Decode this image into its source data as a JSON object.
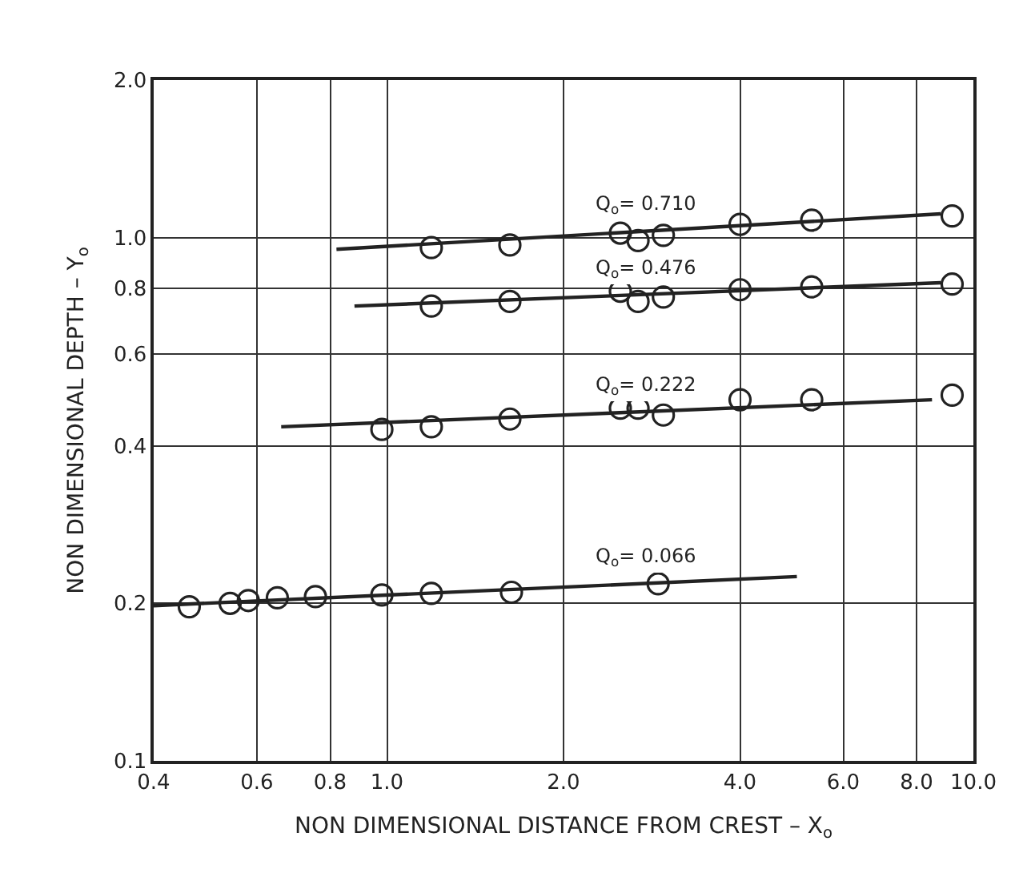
{
  "chart_data": {
    "type": "scatter",
    "xlabel": "NON DIMENSIONAL DISTANCE FROM CREST – X$_{o}$",
    "ylabel": "NON DIMENSIONAL DEPTH – Y$_{o}$",
    "log": "xy",
    "grid": true,
    "line_style": "solid",
    "xlim": [
      0.4,
      10
    ],
    "ylim": [
      0.1,
      2
    ],
    "xticks": [
      0.4,
      0.6,
      0.8,
      {
        "value": 1,
        "label": "1.0"
      },
      {
        "value": 2,
        "label": "2.0"
      },
      {
        "value": 4,
        "label": "4.0"
      },
      {
        "value": 6,
        "label": "6.0"
      },
      {
        "value": 8,
        "label": "8.0"
      },
      {
        "value": 10,
        "label": "10.0"
      }
    ],
    "yticks": [
      0.1,
      0.2,
      0.4,
      0.6,
      0.8,
      {
        "value": 1,
        "label": "1.0"
      },
      {
        "value": 2,
        "label": "2.0"
      }
    ],
    "series": [
      {
        "marker": "circle",
        "color": "#222222",
        "x": [
          1.19,
          1.62,
          2.5,
          2.68,
          2.96,
          4.0,
          5.3,
          9.2
        ],
        "values": [
          0.957,
          0.968,
          1.02,
          0.987,
          1.01,
          1.06,
          1.08,
          1.1
        ]
      },
      {
        "type": "line",
        "marker": "none",
        "color": "#222222",
        "x": [
          0.82,
          8.8
        ],
        "values": [
          0.95,
          1.11
        ]
      },
      {
        "marker": "circle",
        "color": "#222222",
        "x": [
          1.19,
          1.62,
          2.5,
          2.68,
          2.96,
          4.0,
          5.3,
          9.2
        ],
        "values": [
          0.74,
          0.755,
          0.79,
          0.755,
          0.77,
          0.795,
          0.805,
          0.815
        ]
      },
      {
        "type": "line",
        "marker": "none",
        "color": "#222222",
        "x": [
          0.88,
          8.8
        ],
        "values": [
          0.74,
          0.82
        ]
      },
      {
        "marker": "circle",
        "color": "#222222",
        "x": [
          0.98,
          1.19,
          1.62,
          2.5,
          2.68,
          2.96,
          4.0,
          5.3,
          9.2
        ],
        "values": [
          0.43,
          0.435,
          0.45,
          0.472,
          0.472,
          0.458,
          0.49,
          0.49,
          0.5
        ]
      },
      {
        "type": "line",
        "marker": "none",
        "color": "#222222",
        "x": [
          0.66,
          8.5
        ],
        "values": [
          0.435,
          0.49
        ]
      },
      {
        "marker": "circle",
        "color": "#222222",
        "x": [
          0.46,
          0.54,
          0.58,
          0.65,
          0.755,
          0.98,
          1.19,
          1.63,
          2.9
        ],
        "values": [
          0.197,
          0.2,
          0.2025,
          0.205,
          0.206,
          0.2075,
          0.209,
          0.21,
          0.218
        ]
      },
      {
        "type": "line",
        "marker": "none",
        "color": "#222222",
        "x": [
          0.4,
          5.0
        ],
        "values": [
          0.198,
          0.225
        ]
      }
    ],
    "annotations": [
      "Q$_{o}$= 0.710",
      "Q$_{o}$= 0.476",
      "Q$_{o}$= 0.222",
      "Q$_{o}$= 0.066"
    ]
  }
}
